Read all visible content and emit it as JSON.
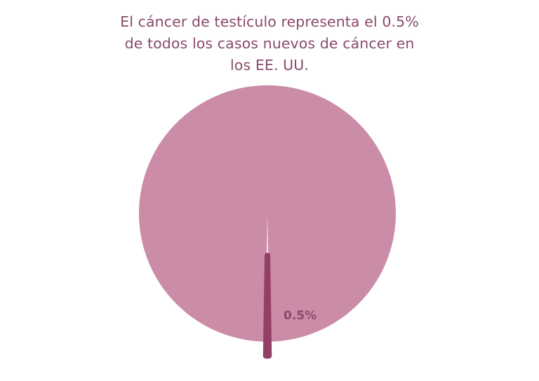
{
  "chart_data": {
    "type": "pie",
    "title_lines": [
      "El cáncer de testículo representa el 0.5%",
      "de todos los casos nuevos de cáncer en",
      "los EE. UU."
    ],
    "slices": [
      {
        "value": 99.5,
        "label": "",
        "color": "#cb8ca8",
        "exploded": false
      },
      {
        "value": 0.5,
        "label": "0.5%",
        "color": "#943f66",
        "exploded": true
      }
    ],
    "label_color": "#8a4a6b",
    "legend": "none"
  }
}
